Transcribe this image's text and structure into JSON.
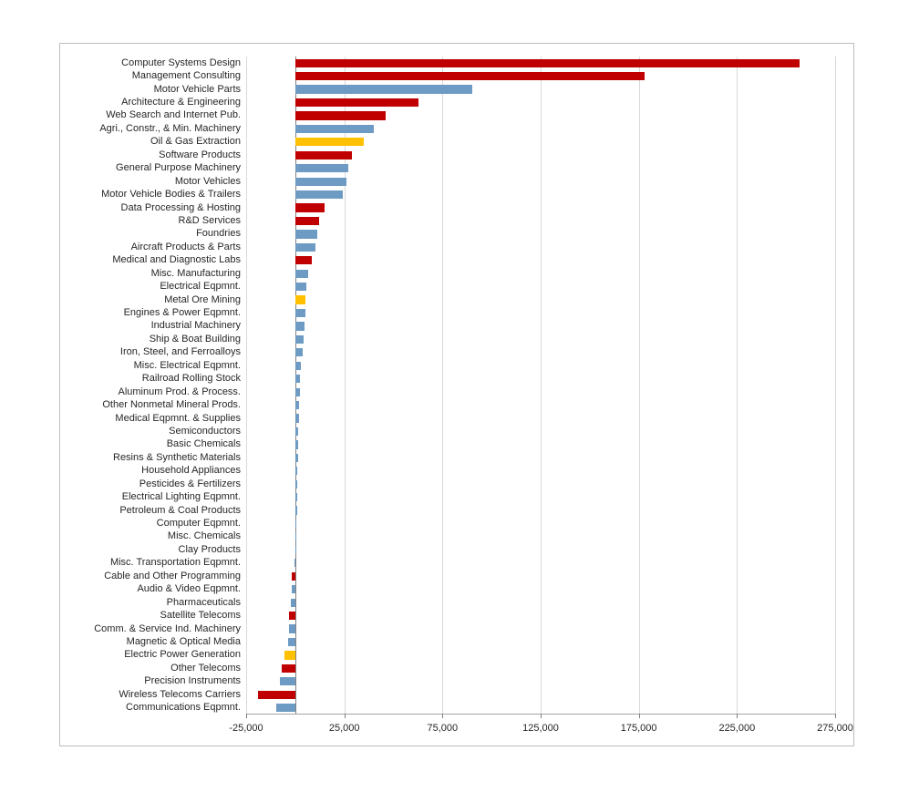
{
  "chart_data": {
    "type": "bar",
    "orientation": "horizontal",
    "xlim": [
      -25000,
      275000
    ],
    "gridlines": "vertical",
    "legend": "none",
    "ticks": [
      {
        "value": -25000,
        "label": "-25,000"
      },
      {
        "value": 25000,
        "label": "25,000"
      },
      {
        "value": 75000,
        "label": "75,000"
      },
      {
        "value": 125000,
        "label": "125,000"
      },
      {
        "value": 175000,
        "label": "175,000"
      },
      {
        "value": 225000,
        "label": "225,000"
      },
      {
        "value": 275000,
        "label": "275,000"
      }
    ],
    "palette": {
      "red": "#C00000",
      "blue": "#6D9BC3",
      "gold": "#FFC000"
    },
    "categories": [
      "Computer Systems Design",
      "Management Consulting",
      "Motor Vehicle Parts",
      "Architecture & Engineering",
      "Web Search and Internet Pub.",
      "Agri., Constr., & Min. Machinery",
      "Oil & Gas Extraction",
      "Software Products",
      "General Purpose Machinery",
      "Motor Vehicles",
      "Motor Vehicle Bodies & Trailers",
      "Data Processing & Hosting",
      "R&D Services",
      "Foundries",
      "Aircraft Products & Parts",
      "Medical and Diagnostic Labs",
      "Misc. Manufacturing",
      "Electrical Eqpmnt.",
      "Metal Ore Mining",
      "Engines & Power Eqpmnt.",
      "Industrial Machinery",
      "Ship & Boat Building",
      "Iron, Steel, and Ferroalloys",
      "Misc. Electrical Eqpmnt.",
      "Railroad Rolling Stock",
      "Aluminum Prod. & Process.",
      "Other Nonmetal Mineral Prods.",
      "Medical Eqpmnt. & Supplies",
      "Semiconductors",
      "Basic Chemicals",
      "Resins & Synthetic Materials",
      "Household Appliances",
      "Pesticides & Fertilizers",
      "Electrical Lighting Eqpmnt.",
      "Petroleum & Coal Products",
      "Computer Eqpmnt.",
      "Misc. Chemicals",
      "Clay Products",
      "Misc. Transportation Eqpmnt.",
      "Cable and Other Programming",
      "Audio & Video Eqpmnt.",
      "Pharmaceuticals",
      "Satellite Telecoms",
      "Comm. & Service Ind. Machinery",
      "Magnetic & Optical Media",
      "Electric Power Generation",
      "Other Telecoms",
      "Precision Instruments",
      "Wireless Telecoms Carriers",
      "Communications Eqpmnt."
    ],
    "values": [
      257000,
      178000,
      90000,
      63000,
      46000,
      40000,
      35000,
      29000,
      27000,
      26000,
      24000,
      15000,
      12000,
      11000,
      10500,
      8500,
      6500,
      5500,
      5400,
      5000,
      4600,
      4200,
      3700,
      2800,
      2400,
      2300,
      2000,
      1800,
      1500,
      1400,
      1300,
      1200,
      1000,
      900,
      800,
      700,
      400,
      300,
      -400,
      -1800,
      -1900,
      -2300,
      -3200,
      -3400,
      -3700,
      -5500,
      -7000,
      -7800,
      -19000,
      -9500
    ],
    "bar_colors": [
      "red",
      "red",
      "blue",
      "red",
      "red",
      "blue",
      "gold",
      "red",
      "blue",
      "blue",
      "blue",
      "red",
      "red",
      "blue",
      "blue",
      "red",
      "blue",
      "blue",
      "gold",
      "blue",
      "blue",
      "blue",
      "blue",
      "blue",
      "blue",
      "blue",
      "blue",
      "blue",
      "blue",
      "blue",
      "blue",
      "blue",
      "blue",
      "blue",
      "blue",
      "blue",
      "blue",
      "blue",
      "blue",
      "red",
      "blue",
      "blue",
      "red",
      "blue",
      "blue",
      "gold",
      "red",
      "blue",
      "red",
      "blue"
    ]
  }
}
